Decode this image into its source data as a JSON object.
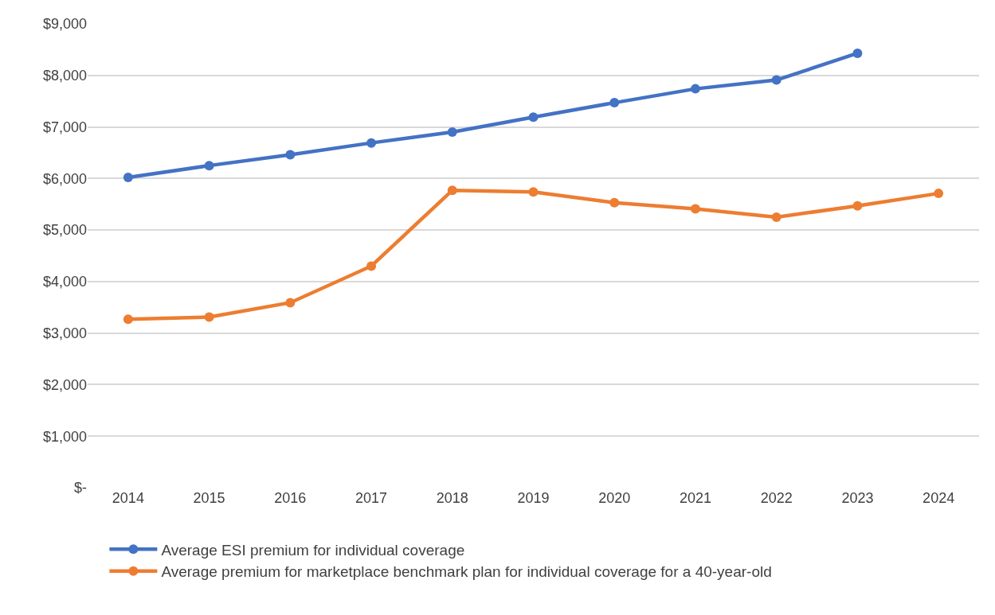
{
  "chart_data": {
    "type": "line",
    "categories": [
      "2014",
      "2015",
      "2016",
      "2017",
      "2018",
      "2019",
      "2020",
      "2021",
      "2022",
      "2023",
      "2024"
    ],
    "series": [
      {
        "name": "Average ESI premium for individual coverage",
        "color": "#4472c4",
        "values": [
          6020,
          6250,
          6460,
          6690,
          6900,
          7190,
          7470,
          7740,
          7910,
          8430,
          null
        ]
      },
      {
        "name": "Average premium for marketplace benchmark plan for individual coverage for a 40-year-old",
        "color": "#ed7d31",
        "values": [
          3270,
          3310,
          3590,
          4300,
          5770,
          5740,
          5530,
          5410,
          5250,
          5470,
          5710
        ]
      }
    ],
    "ylim": [
      0,
      9000
    ],
    "yticks": [
      {
        "value": 0,
        "label": "$-"
      },
      {
        "value": 1000,
        "label": "$1,000"
      },
      {
        "value": 2000,
        "label": "$2,000"
      },
      {
        "value": 3000,
        "label": "$3,000"
      },
      {
        "value": 4000,
        "label": "$4,000"
      },
      {
        "value": 5000,
        "label": "$5,000"
      },
      {
        "value": 6000,
        "label": "$6,000"
      },
      {
        "value": 7000,
        "label": "$7,000"
      },
      {
        "value": 8000,
        "label": "$8,000"
      },
      {
        "value": 9000,
        "label": "$9,000"
      }
    ],
    "grid": "y",
    "legend": "bottom",
    "marker": "circle",
    "line_style": "solid"
  }
}
